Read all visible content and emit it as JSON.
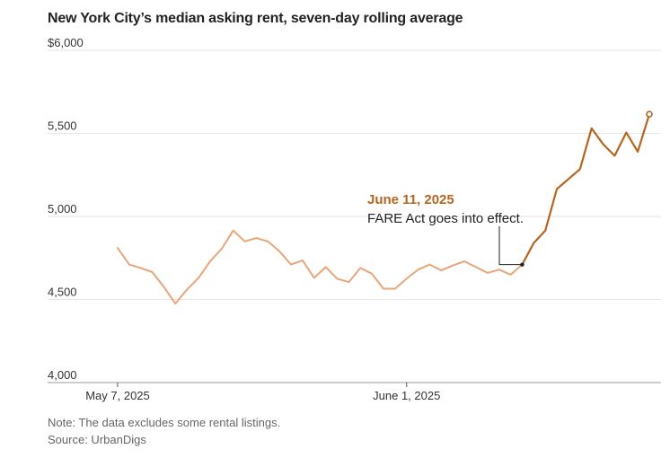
{
  "chart_data": {
    "type": "line",
    "title": "New York City’s median asking rent, seven-day rolling average",
    "ylim": [
      4000,
      6000
    ],
    "y_ticks": [
      {
        "value": 6000,
        "label": "$6,000"
      },
      {
        "value": 5500,
        "label": "5,500"
      },
      {
        "value": 5000,
        "label": "5,000"
      },
      {
        "value": 4500,
        "label": "4,500"
      },
      {
        "value": 4000,
        "label": "4,000"
      }
    ],
    "x_ticks": [
      {
        "date": "2025-05-07",
        "label": "May 7, 2025"
      },
      {
        "date": "2025-06-01",
        "label": "June 1, 2025"
      }
    ],
    "grid": true,
    "series": [
      {
        "color": "#e8a57a",
        "points": [
          {
            "x": "2025-05-07",
            "y": 4810
          },
          {
            "x": "2025-05-08",
            "y": 4710
          },
          {
            "x": "2025-05-09",
            "y": 4690
          },
          {
            "x": "2025-05-10",
            "y": 4665
          },
          {
            "x": "2025-05-11",
            "y": 4575
          },
          {
            "x": "2025-05-12",
            "y": 4475
          },
          {
            "x": "2025-05-13",
            "y": 4560
          },
          {
            "x": "2025-05-14",
            "y": 4630
          },
          {
            "x": "2025-05-15",
            "y": 4730
          },
          {
            "x": "2025-05-16",
            "y": 4805
          },
          {
            "x": "2025-05-17",
            "y": 4915
          },
          {
            "x": "2025-05-18",
            "y": 4850
          },
          {
            "x": "2025-05-19",
            "y": 4870
          },
          {
            "x": "2025-05-20",
            "y": 4850
          },
          {
            "x": "2025-05-21",
            "y": 4790
          },
          {
            "x": "2025-05-22",
            "y": 4710
          },
          {
            "x": "2025-05-23",
            "y": 4735
          },
          {
            "x": "2025-05-24",
            "y": 4630
          },
          {
            "x": "2025-05-25",
            "y": 4695
          },
          {
            "x": "2025-05-26",
            "y": 4625
          },
          {
            "x": "2025-05-27",
            "y": 4605
          },
          {
            "x": "2025-05-28",
            "y": 4690
          },
          {
            "x": "2025-05-29",
            "y": 4655
          },
          {
            "x": "2025-05-30",
            "y": 4565
          },
          {
            "x": "2025-05-31",
            "y": 4565
          },
          {
            "x": "2025-06-01",
            "y": 4625
          },
          {
            "x": "2025-06-02",
            "y": 4680
          },
          {
            "x": "2025-06-03",
            "y": 4710
          },
          {
            "x": "2025-06-04",
            "y": 4675
          },
          {
            "x": "2025-06-05",
            "y": 4705
          },
          {
            "x": "2025-06-06",
            "y": 4730
          },
          {
            "x": "2025-06-07",
            "y": 4695
          },
          {
            "x": "2025-06-08",
            "y": 4660
          },
          {
            "x": "2025-06-09",
            "y": 4680
          },
          {
            "x": "2025-06-10",
            "y": 4650
          },
          {
            "x": "2025-06-11",
            "y": 4710
          }
        ]
      },
      {
        "color": "#b5651d",
        "points": [
          {
            "x": "2025-06-11",
            "y": 4710
          },
          {
            "x": "2025-06-12",
            "y": 4840
          },
          {
            "x": "2025-06-13",
            "y": 4915
          },
          {
            "x": "2025-06-14",
            "y": 5165
          },
          {
            "x": "2025-06-15",
            "y": 5225
          },
          {
            "x": "2025-06-16",
            "y": 5285
          },
          {
            "x": "2025-06-17",
            "y": 5530
          },
          {
            "x": "2025-06-18",
            "y": 5435
          },
          {
            "x": "2025-06-19",
            "y": 5365
          },
          {
            "x": "2025-06-20",
            "y": 5505
          },
          {
            "x": "2025-06-21",
            "y": 5390
          },
          {
            "x": "2025-06-22",
            "y": 5615
          }
        ]
      }
    ],
    "annotation": {
      "date": "2025-06-11",
      "value": 4710,
      "heading": "June 11, 2025",
      "text": "FARE Act goes into effect."
    }
  },
  "footer": {
    "note": "Note: The data excludes some rental listings.",
    "source": "Source: UrbanDigs"
  },
  "colors": {
    "before": "#e8a57a",
    "after": "#b5651d",
    "grid": "#e6e6e6",
    "axis_text": "#333333"
  }
}
